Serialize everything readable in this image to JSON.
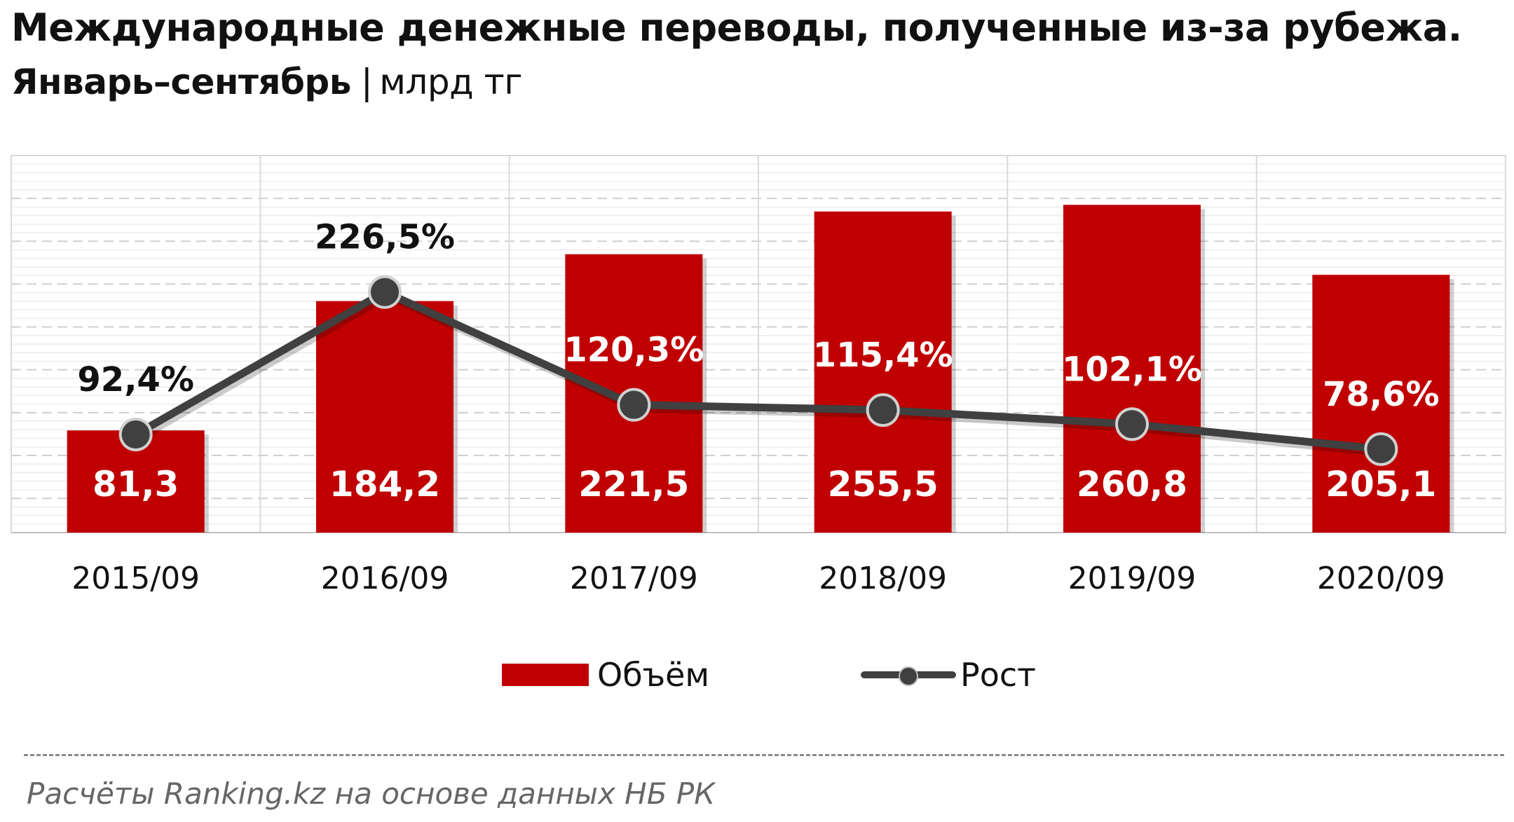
{
  "title": {
    "line1": "Международные денежные переводы, полученные из-за рубежа.",
    "line2": "Январь–сентябрь",
    "separator": "|",
    "unit": "млрд тг"
  },
  "legend": {
    "bar_label": "Объём",
    "line_label": "Рост"
  },
  "source": "Расчёты Ranking.kz на основе данных НБ РК",
  "colors": {
    "bar": "#c00000",
    "line": "#404040",
    "grid": "#d9d9d9"
  },
  "chart_data": {
    "type": "bar",
    "categories": [
      "2015/09",
      "2016/09",
      "2017/09",
      "2018/09",
      "2019/09",
      "2020/09"
    ],
    "series": [
      {
        "name": "Объём",
        "type": "bar",
        "values": [
          81.3,
          184.2,
          221.5,
          255.5,
          260.8,
          205.1
        ],
        "labels": [
          "81,3",
          "184,2",
          "221,5",
          "255,5",
          "260,8",
          "205,1"
        ],
        "axis": "left",
        "ylim": [
          0,
          300
        ]
      },
      {
        "name": "Рост",
        "type": "line",
        "values": [
          92.4,
          226.5,
          120.3,
          115.4,
          102.1,
          78.6
        ],
        "labels": [
          "92,4%",
          "226,5%",
          "120,3%",
          "115,4%",
          "102,1%",
          "78,6%"
        ],
        "axis": "right",
        "ylim": [
          0,
          355
        ]
      }
    ],
    "grid": true,
    "legend_position": "bottom"
  }
}
